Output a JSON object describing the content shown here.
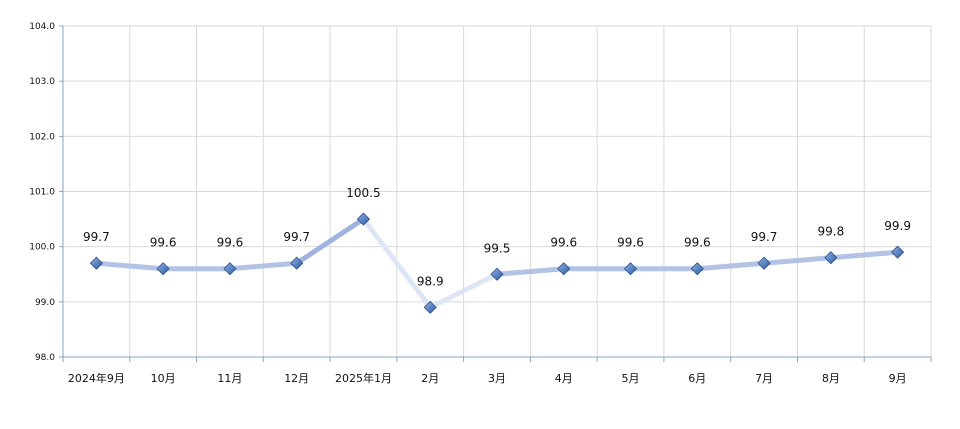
{
  "chart_data": {
    "type": "line",
    "categories": [
      "2024年9月",
      "10月",
      "11月",
      "12月",
      "2025年1月",
      "2月",
      "3月",
      "4月",
      "5月",
      "6月",
      "7月",
      "8月",
      "9月"
    ],
    "series": [
      {
        "values": [
          99.7,
          99.6,
          99.6,
          99.7,
          100.5,
          98.9,
          99.5,
          99.6,
          99.6,
          99.6,
          99.7,
          99.8,
          99.9
        ]
      }
    ],
    "data_labels": [
      "99.7",
      "99.6",
      "99.6",
      "99.7",
      "100.5",
      "98.9",
      "99.5",
      "99.6",
      "99.6",
      "99.6",
      "99.7",
      "99.8",
      "99.9"
    ],
    "y_ticks": [
      "98.0",
      "99.0",
      "100.0",
      "101.0",
      "102.0",
      "103.0",
      "104.0"
    ],
    "ylim": [
      98,
      104
    ],
    "title": "",
    "xlabel": "",
    "ylabel": "",
    "grid": true,
    "legend": "none",
    "colors": {
      "line_light": "#dce6f5",
      "line_mid": "#b3c3e6",
      "line_dark": "#9fb3de",
      "marker": "#3a6bb5",
      "marker_light": "#7aa2d8",
      "gridline": "#d9d9d9",
      "axis": "#8ea3c2"
    }
  }
}
